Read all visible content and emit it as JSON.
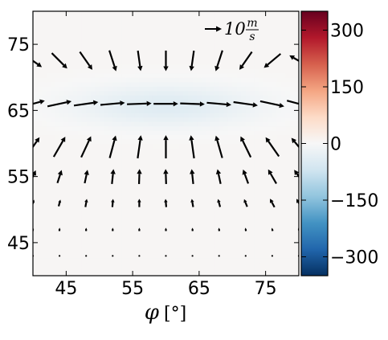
{
  "chart_data": {
    "type": "heatmap",
    "title": "",
    "xlabel_symbol": "φ",
    "xlabel_unit": "[°]",
    "ylabel": "",
    "xlim": [
      40,
      80
    ],
    "ylim": [
      40,
      80
    ],
    "x_ticks": [
      45,
      55,
      65,
      75
    ],
    "y_ticks": [
      45,
      55,
      65,
      75
    ],
    "colorbar": {
      "range": [
        -350,
        350
      ],
      "ticks": [
        300,
        150,
        0,
        -150,
        -300
      ],
      "tick_labels": [
        "300",
        "150",
        "0",
        "−150",
        "−300"
      ],
      "colormap": "RdBu_r",
      "colors": [
        "#053061",
        "#2166ac",
        "#4393c3",
        "#92c5de",
        "#d1e5f0",
        "#f7f7f7",
        "#fddbc7",
        "#f4a582",
        "#d6604d",
        "#b2182b",
        "#67001f"
      ]
    },
    "field": {
      "background_value": 5,
      "band": {
        "center_y": 65.8,
        "peak_value": -45,
        "x_center": 60,
        "x_half_width": 14,
        "y_half_width": 3.2
      }
    },
    "reference_vector": {
      "number": "10",
      "unit_numerator": "m",
      "unit_denominator": "s",
      "magnitude": 10
    },
    "quiver": {
      "x": [
        40,
        44,
        48,
        52,
        56,
        60,
        64,
        68,
        72,
        76,
        80
      ],
      "y": [
        43,
        47,
        51,
        55,
        59.5,
        66,
        72.5
      ],
      "rows": [
        {
          "y": 72.5,
          "angles_deg": [
            -35,
            -45,
            -55,
            -72,
            -82,
            -90,
            -98,
            -108,
            -125,
            -140,
            150
          ],
          "magnitudes": [
            8,
            8,
            8,
            8,
            7.5,
            7.5,
            7.5,
            8,
            8,
            8,
            8
          ]
        },
        {
          "y": 66,
          "angles_deg": [
            15,
            12,
            8,
            5,
            2,
            0,
            -2,
            -5,
            -8,
            -12,
            -15
          ],
          "magnitudes": [
            9,
            9,
            9,
            9,
            9,
            9,
            9,
            9,
            9,
            9,
            9
          ]
        },
        {
          "y": 59.5,
          "angles_deg": [
            55,
            60,
            65,
            75,
            82,
            90,
            98,
            106,
            116,
            125,
            130
          ],
          "magnitudes": [
            8.5,
            8.5,
            8.5,
            8.5,
            8.5,
            8.5,
            8.5,
            8.5,
            8.5,
            8.5,
            8.5
          ]
        },
        {
          "y": 55,
          "angles_deg": [
            65,
            72,
            78,
            84,
            88,
            92,
            96,
            102,
            110,
            120,
            125
          ],
          "magnitudes": [
            5,
            5,
            5,
            5.5,
            5.5,
            5.5,
            5.5,
            5.5,
            5.5,
            6,
            6
          ]
        },
        {
          "y": 51,
          "angles_deg": [
            70,
            75,
            80,
            85,
            90,
            95,
            100,
            105,
            112,
            118,
            120
          ],
          "magnitudes": [
            2.5,
            2.5,
            3,
            3,
            3,
            3,
            3,
            3,
            3,
            3.5,
            3.5
          ]
        },
        {
          "y": 47,
          "angles_deg": [
            80,
            85,
            88,
            90,
            90,
            92,
            95,
            98,
            100,
            105,
            108
          ],
          "magnitudes": [
            1.2,
            1.2,
            1.2,
            1.2,
            1.2,
            1.2,
            1.2,
            1.2,
            1.2,
            1.2,
            1.2
          ]
        },
        {
          "y": 43,
          "angles_deg": [
            85,
            88,
            90,
            90,
            90,
            90,
            92,
            94,
            96,
            98,
            100
          ],
          "magnitudes": [
            0.6,
            0.6,
            0.6,
            0.6,
            0.6,
            0.6,
            0.6,
            0.6,
            0.6,
            0.6,
            0.6
          ]
        }
      ]
    }
  }
}
